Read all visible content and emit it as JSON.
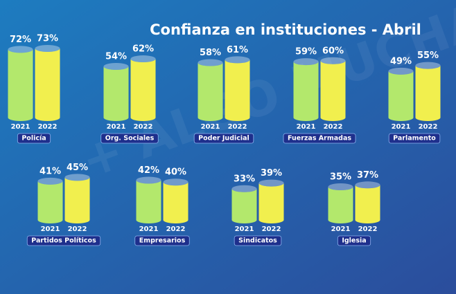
{
  "chart_data": {
    "type": "cylinder-bar",
    "title": "Confianza en instituciones - Abril",
    "watermark": "+ ALGO MUCHA",
    "categories": [
      "Policía",
      "Org. Sociales",
      "Poder Judicial",
      "Fuerzas Armadas",
      "Parlamento",
      "Partidos Políticos",
      "Empresarios",
      "Sindicatos",
      "Iglesia"
    ],
    "series": [
      {
        "name": "2021",
        "color": "#b3e86c",
        "values": [
          72,
          54,
          58,
          59,
          49,
          41,
          42,
          33,
          35
        ],
        "value_labels": [
          "72%",
          "54%",
          "58%",
          "59%",
          "49%",
          "41%",
          "42%",
          "33%",
          "35%"
        ]
      },
      {
        "name": "2022",
        "color": "#f1ef4e",
        "values": [
          73,
          62,
          61,
          60,
          55,
          45,
          40,
          39,
          37
        ],
        "value_labels": [
          "73%",
          "62%",
          "61%",
          "60%",
          "55%",
          "45%",
          "40%",
          "39%",
          "37%"
        ]
      }
    ]
  }
}
